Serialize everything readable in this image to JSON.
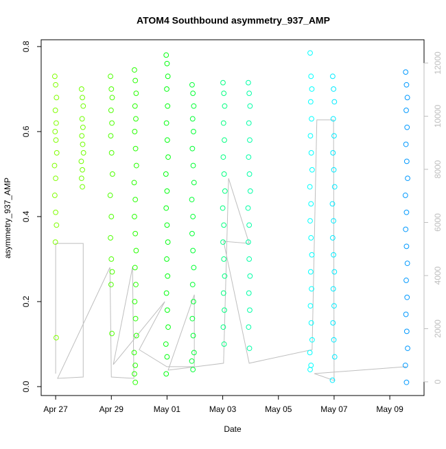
{
  "chart_data": {
    "type": "scatter",
    "title": "ATOM4 Southbound asymmetry_937_AMP",
    "x_label": "Date",
    "y_label": "asymmetry_937_AMP",
    "xlim": [
      26.48,
      40.23
    ],
    "ylim": [
      -0.021,
      0.816
    ],
    "y2lim": [
      -516,
      12877
    ],
    "xticks": [
      {
        "value": 27,
        "label": "Apr 27"
      },
      {
        "value": 29,
        "label": "Apr 29"
      },
      {
        "value": 31,
        "label": "May 01"
      },
      {
        "value": 33,
        "label": "May 03"
      },
      {
        "value": 35,
        "label": "May 05"
      },
      {
        "value": 37,
        "label": "May 07"
      },
      {
        "value": 39,
        "label": "May 09"
      }
    ],
    "yticks": [
      {
        "value": 0,
        "label": "0.0"
      },
      0.2,
      0.4,
      0.6,
      0.8
    ],
    "y2ticks": [
      0,
      2000,
      4000,
      6000,
      8000,
      10000,
      12000
    ],
    "series": [
      {
        "color": "#80ff00",
        "x": [
          26.97,
          27,
          27.03,
          26.99,
          27.02,
          26.98,
          27.01,
          27.04,
          26.96,
          27,
          26.97,
          27,
          27.03,
          26.99,
          27.02
        ],
        "values": [
          0.73,
          0.71,
          0.68,
          0.65,
          0.62,
          0.6,
          0.58,
          0.55,
          0.52,
          0.49,
          0.45,
          0.41,
          0.38,
          0.34,
          0.115
        ]
      },
      {
        "color": "#70ff00",
        "x": [
          27.93,
          27.96,
          27.99,
          27.95,
          27.98,
          27.94,
          27.97,
          28,
          27.92,
          27.96,
          27.93,
          27.96
        ],
        "values": [
          0.7,
          0.68,
          0.66,
          0.63,
          0.61,
          0.59,
          0.57,
          0.55,
          0.53,
          0.51,
          0.49,
          0.47
        ]
      },
      {
        "color": "#4dff00",
        "x": [
          28.97,
          29,
          29.03,
          28.99,
          29.02,
          28.98,
          29.01,
          29.04,
          28.96,
          29,
          28.97,
          29,
          29.03,
          28.99,
          29.02
        ],
        "values": [
          0.73,
          0.7,
          0.68,
          0.65,
          0.62,
          0.59,
          0.55,
          0.5,
          0.45,
          0.4,
          0.35,
          0.3,
          0.27,
          0.24,
          0.125
        ]
      },
      {
        "color": "#26ff00",
        "x": [
          29.83,
          29.86,
          29.89,
          29.85,
          29.88,
          29.84,
          29.87,
          29.9,
          29.82,
          29.86,
          29.83,
          29.86,
          29.89,
          29.85,
          29.88,
          29.84,
          29.87,
          29.9,
          29.82,
          29.86,
          29.83,
          29.86
        ],
        "values": [
          0.745,
          0.72,
          0.69,
          0.66,
          0.63,
          0.6,
          0.56,
          0.52,
          0.48,
          0.44,
          0.4,
          0.36,
          0.32,
          0.28,
          0.24,
          0.2,
          0.16,
          0.12,
          0.08,
          0.05,
          0.03,
          0.01
        ]
      },
      {
        "color": "#00ff0d",
        "x": [
          30.97,
          31,
          31.03,
          30.99,
          31.02,
          30.98,
          31.01,
          31.04,
          30.96,
          31,
          30.97,
          31,
          31.03,
          30.99,
          31.02,
          30.98,
          31.01,
          31.04,
          30.96,
          31,
          30.97
        ],
        "values": [
          0.78,
          0.76,
          0.73,
          0.7,
          0.66,
          0.62,
          0.58,
          0.54,
          0.5,
          0.46,
          0.42,
          0.38,
          0.34,
          0.3,
          0.26,
          0.22,
          0.18,
          0.14,
          0.1,
          0.07,
          0.03
        ]
      },
      {
        "color": "#00ff33",
        "x": [
          31.9,
          31.93,
          31.96,
          31.92,
          31.95,
          31.91,
          31.94,
          31.97,
          31.89,
          31.93,
          31.9,
          31.93,
          31.96,
          31.92,
          31.95,
          31.91,
          31.94,
          31.97,
          31.89,
          31.93
        ],
        "values": [
          0.71,
          0.69,
          0.66,
          0.63,
          0.6,
          0.56,
          0.52,
          0.48,
          0.44,
          0.4,
          0.36,
          0.32,
          0.28,
          0.24,
          0.2,
          0.16,
          0.12,
          0.08,
          0.06,
          0.04
        ]
      },
      {
        "color": "#00ff80",
        "x": [
          33.01,
          33.04,
          33.07,
          33.03,
          33.06,
          33.02,
          33.05,
          33.08,
          33,
          33.04,
          33.01,
          33.04,
          33.07,
          33.03,
          33.06,
          33.02,
          33.05
        ],
        "values": [
          0.715,
          0.69,
          0.66,
          0.62,
          0.58,
          0.54,
          0.5,
          0.46,
          0.42,
          0.38,
          0.34,
          0.3,
          0.26,
          0.22,
          0.18,
          0.14,
          0.1
        ]
      },
      {
        "color": "#00ffa6",
        "x": [
          33.92,
          33.95,
          33.98,
          33.94,
          33.97,
          33.93,
          33.96,
          33.99,
          33.91,
          33.95,
          33.92,
          33.95,
          33.98,
          33.94,
          33.97,
          33.93,
          33.96
        ],
        "values": [
          0.715,
          0.69,
          0.66,
          0.62,
          0.58,
          0.54,
          0.5,
          0.46,
          0.42,
          0.38,
          0.34,
          0.3,
          0.26,
          0.22,
          0.18,
          0.14,
          0.09
        ]
      },
      {
        "color": "#00ffff",
        "x": [
          36.14,
          36.17,
          36.2,
          36.16,
          36.19,
          36.15,
          36.18,
          36.21,
          36.13,
          36.17,
          36.14,
          36.17,
          36.2,
          36.16,
          36.19,
          36.15,
          36.18,
          36.21,
          36.13,
          36.17,
          36.14
        ],
        "values": [
          0.785,
          0.73,
          0.7,
          0.67,
          0.63,
          0.59,
          0.55,
          0.51,
          0.47,
          0.43,
          0.39,
          0.35,
          0.31,
          0.27,
          0.23,
          0.19,
          0.15,
          0.11,
          0.08,
          0.05,
          0.04
        ]
      },
      {
        "color": "#00eaff",
        "x": [
          36.95,
          36.98,
          37.01,
          36.97,
          37,
          36.96,
          36.99,
          37.02,
          36.94,
          36.98,
          36.95,
          36.98,
          37.01,
          36.97,
          37,
          36.96,
          36.99,
          37.02,
          36.94
        ],
        "values": [
          0.73,
          0.7,
          0.67,
          0.63,
          0.59,
          0.55,
          0.51,
          0.47,
          0.43,
          0.39,
          0.35,
          0.31,
          0.27,
          0.23,
          0.19,
          0.15,
          0.11,
          0.07,
          0.015
        ]
      },
      {
        "color": "#0099ff",
        "x": [
          39.57,
          39.6,
          39.63,
          39.59,
          39.62,
          39.58,
          39.61,
          39.64,
          39.56,
          39.6,
          39.57,
          39.6,
          39.63,
          39.59,
          39.62,
          39.58,
          39.61,
          39.64,
          39.56,
          39.6
        ],
        "values": [
          0.74,
          0.71,
          0.68,
          0.65,
          0.61,
          0.57,
          0.53,
          0.49,
          0.45,
          0.41,
          0.37,
          0.33,
          0.29,
          0.25,
          0.21,
          0.17,
          0.13,
          0.09,
          0.05,
          0.01
        ]
      },
      {
        "color": "#bebebe",
        "axis": "y2",
        "x": [
          27,
          27,
          27.99,
          27.99,
          27.07,
          28.95,
          29,
          29.81,
          29.76,
          29.07,
          30.92,
          30,
          30.99,
          31.98,
          31.98,
          31.04,
          33.03,
          33.21,
          33.95,
          33.03,
          33.95,
          36.21,
          36.38,
          36.98,
          37,
          36.29,
          39.59
        ],
        "values": [
          310,
          5210,
          5210,
          180,
          130,
          4310,
          180,
          130,
          4310,
          650,
          3020,
          1210,
          570,
          570,
          3280,
          440,
          700,
          7660,
          5210,
          5290,
          700,
          1210,
          9860,
          9860,
          50,
          310,
          570
        ]
      }
    ]
  }
}
